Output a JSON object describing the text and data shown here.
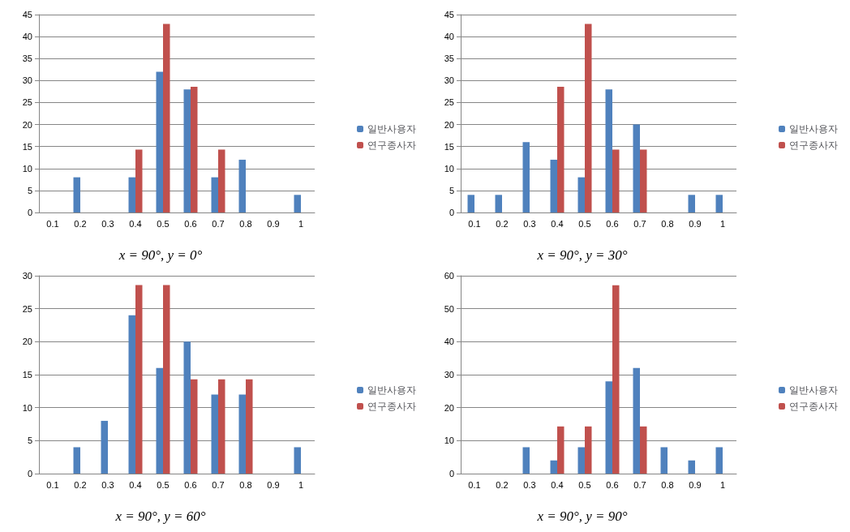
{
  "chart_data": [
    {
      "type": "bar",
      "title": "x = 90°, y = 0°",
      "categories": [
        "0.1",
        "0.2",
        "0.3",
        "0.4",
        "0.5",
        "0.6",
        "0.7",
        "0.8",
        "0.9",
        "1"
      ],
      "series": [
        {
          "name": "일반사용자",
          "color": "#4f81bd",
          "values": [
            0,
            8,
            0,
            8,
            32,
            28,
            8,
            12,
            0,
            4
          ]
        },
        {
          "name": "연구종사자",
          "color": "#c0504d",
          "values": [
            0,
            0,
            0,
            14.3,
            42.9,
            28.6,
            14.3,
            0,
            0,
            0
          ]
        }
      ],
      "ylim": [
        0,
        45
      ],
      "yticks": [
        0,
        5,
        10,
        15,
        20,
        25,
        30,
        35,
        40,
        45
      ],
      "grid": "y",
      "legend": "right"
    },
    {
      "type": "bar",
      "title": "x = 90°, y = 30°",
      "categories": [
        "0.1",
        "0.2",
        "0.3",
        "0.4",
        "0.5",
        "0.6",
        "0.7",
        "0.8",
        "0.9",
        "1"
      ],
      "series": [
        {
          "name": "일반사용자",
          "color": "#4f81bd",
          "values": [
            4,
            4,
            16,
            12,
            8,
            28,
            20,
            0,
            4,
            4
          ]
        },
        {
          "name": "연구종사자",
          "color": "#c0504d",
          "values": [
            0,
            0,
            0,
            28.6,
            42.9,
            14.3,
            14.3,
            0,
            0,
            0
          ]
        }
      ],
      "ylim": [
        0,
        45
      ],
      "yticks": [
        0,
        5,
        10,
        15,
        20,
        25,
        30,
        35,
        40,
        45
      ],
      "grid": "y",
      "legend": "right"
    },
    {
      "type": "bar",
      "title": "x = 90°, y = 60°",
      "categories": [
        "0.1",
        "0.2",
        "0.3",
        "0.4",
        "0.5",
        "0.6",
        "0.7",
        "0.8",
        "0.9",
        "1"
      ],
      "series": [
        {
          "name": "일반사용자",
          "color": "#4f81bd",
          "values": [
            0,
            4,
            8,
            24,
            16,
            20,
            12,
            12,
            0,
            4
          ]
        },
        {
          "name": "연구종사자",
          "color": "#c0504d",
          "values": [
            0,
            0,
            0,
            28.6,
            28.6,
            14.3,
            14.3,
            14.3,
            0,
            0
          ]
        }
      ],
      "ylim": [
        0,
        30
      ],
      "yticks": [
        0,
        5,
        10,
        15,
        20,
        25,
        30
      ],
      "grid": "y",
      "legend": "right"
    },
    {
      "type": "bar",
      "title": "x = 90°, y = 90°",
      "categories": [
        "0.1",
        "0.2",
        "0.3",
        "0.4",
        "0.5",
        "0.6",
        "0.7",
        "0.8",
        "0.9",
        "1"
      ],
      "series": [
        {
          "name": "일반사용자",
          "color": "#4f81bd",
          "values": [
            0,
            0,
            8,
            4,
            8,
            28,
            32,
            8,
            4,
            8
          ]
        },
        {
          "name": "연구종사자",
          "color": "#c0504d",
          "values": [
            0,
            0,
            0,
            14.3,
            14.3,
            57.1,
            14.3,
            0,
            0,
            0
          ]
        }
      ],
      "ylim": [
        0,
        60
      ],
      "yticks": [
        0,
        10,
        20,
        30,
        40,
        50,
        60
      ],
      "grid": "y",
      "legend": "right"
    }
  ]
}
